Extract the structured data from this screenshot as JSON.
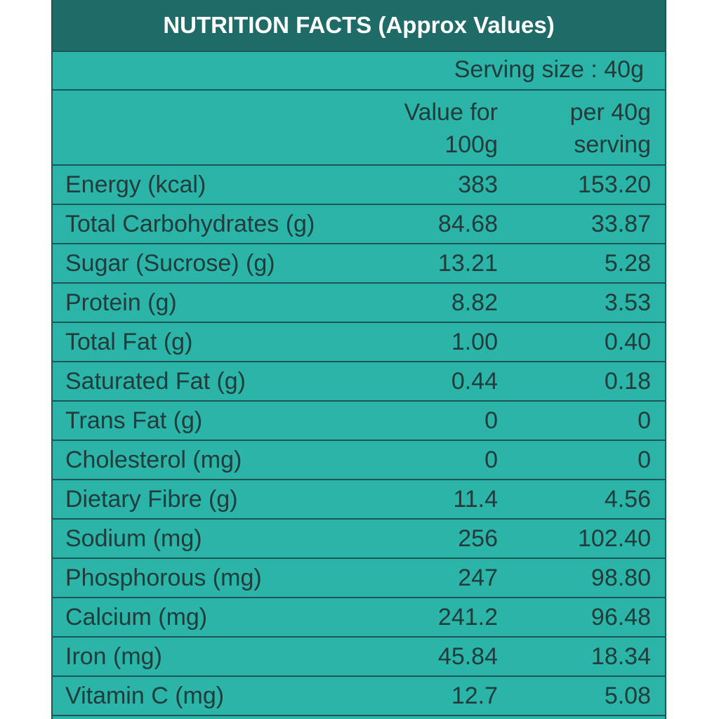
{
  "title": "NUTRITION FACTS (Approx Values)",
  "serving_size": "Serving size : 40g",
  "columns": {
    "per_100g_line1": "Value for",
    "per_100g_line2": "100g",
    "per_serving_line1": "per 40g",
    "per_serving_line2": "serving"
  },
  "rows": [
    {
      "label": "Energy (kcal)",
      "per_100g": "383",
      "per_serving": "153.20"
    },
    {
      "label": "Total Carbohydrates (g)",
      "per_100g": "84.68",
      "per_serving": "33.87"
    },
    {
      "label": "Sugar (Sucrose) (g)",
      "per_100g": "13.21",
      "per_serving": "5.28"
    },
    {
      "label": "Protein (g)",
      "per_100g": "8.82",
      "per_serving": "3.53"
    },
    {
      "label": "Total Fat (g)",
      "per_100g": "1.00",
      "per_serving": "0.40"
    },
    {
      "label": "Saturated Fat (g)",
      "per_100g": "0.44",
      "per_serving": "0.18"
    },
    {
      "label": "Trans Fat (g)",
      "per_100g": "0",
      "per_serving": "0"
    },
    {
      "label": "Cholesterol (mg)",
      "per_100g": "0",
      "per_serving": "0"
    },
    {
      "label": "Dietary Fibre (g)",
      "per_100g": "11.4",
      "per_serving": "4.56"
    },
    {
      "label": "Sodium (mg)",
      "per_100g": "256",
      "per_serving": "102.40"
    },
    {
      "label": "Phosphorous (mg)",
      "per_100g": "247",
      "per_serving": "98.80"
    },
    {
      "label": "Calcium (mg)",
      "per_100g": "241.2",
      "per_serving": "96.48"
    },
    {
      "label": "Iron (mg)",
      "per_100g": "45.84",
      "per_serving": "18.34"
    },
    {
      "label": "Vitamin C (mg)",
      "per_100g": "12.7",
      "per_serving": "5.08"
    }
  ],
  "colors": {
    "panel": "#2bb5a8",
    "title_bar": "#1f6b68",
    "rule": "#1d5656",
    "title_text": "#ffffff",
    "body_text": "#223b3b"
  }
}
